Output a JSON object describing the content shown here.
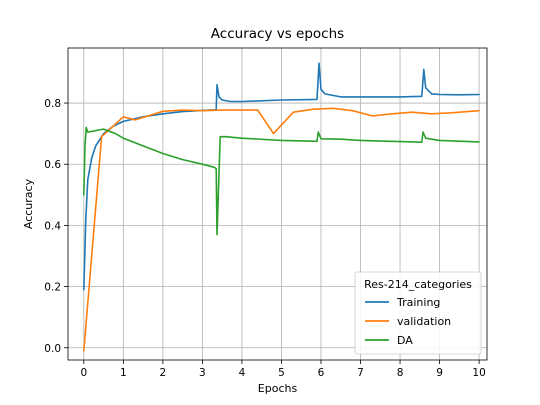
{
  "chart_data": {
    "type": "line",
    "title": "Accuracy vs epochs",
    "xlabel": "Epochs",
    "ylabel": "Accuracy",
    "xlim": [
      -0.4,
      10.2
    ],
    "ylim": [
      -0.04,
      0.98
    ],
    "xticks": [
      0,
      1,
      2,
      3,
      4,
      5,
      6,
      7,
      8,
      9,
      10
    ],
    "yticks": [
      0.0,
      0.2,
      0.4,
      0.6,
      0.8
    ],
    "ytick_labels": [
      "0.0",
      "0.2",
      "0.4",
      "0.6",
      "0.8"
    ],
    "grid": true,
    "legend": {
      "title": "Res-214_categories",
      "placement": "lower-right"
    },
    "series": [
      {
        "name": "Training",
        "color": "#1f77b4",
        "points": [
          [
            0.0,
            0.19
          ],
          [
            0.05,
            0.42
          ],
          [
            0.1,
            0.55
          ],
          [
            0.2,
            0.62
          ],
          [
            0.3,
            0.66
          ],
          [
            0.5,
            0.7
          ],
          [
            0.75,
            0.725
          ],
          [
            1.0,
            0.74
          ],
          [
            1.5,
            0.755
          ],
          [
            2.0,
            0.765
          ],
          [
            2.5,
            0.772
          ],
          [
            3.0,
            0.776
          ],
          [
            3.35,
            0.778
          ],
          [
            3.37,
            0.86
          ],
          [
            3.42,
            0.82
          ],
          [
            3.5,
            0.81
          ],
          [
            3.7,
            0.805
          ],
          [
            4.0,
            0.805
          ],
          [
            5.0,
            0.81
          ],
          [
            5.9,
            0.812
          ],
          [
            5.95,
            0.93
          ],
          [
            6.0,
            0.845
          ],
          [
            6.1,
            0.83
          ],
          [
            6.5,
            0.82
          ],
          [
            7.0,
            0.82
          ],
          [
            8.0,
            0.82
          ],
          [
            8.55,
            0.822
          ],
          [
            8.6,
            0.91
          ],
          [
            8.65,
            0.85
          ],
          [
            8.8,
            0.83
          ],
          [
            9.0,
            0.828
          ],
          [
            9.5,
            0.827
          ],
          [
            10.0,
            0.828
          ]
        ]
      },
      {
        "name": "validation",
        "color": "#ff7f0e",
        "points": [
          [
            0.0,
            -0.01
          ],
          [
            0.45,
            0.69
          ],
          [
            1.0,
            0.755
          ],
          [
            1.3,
            0.745
          ],
          [
            2.0,
            0.773
          ],
          [
            2.5,
            0.777
          ],
          [
            3.0,
            0.775
          ],
          [
            3.5,
            0.777
          ],
          [
            4.4,
            0.777
          ],
          [
            4.8,
            0.7
          ],
          [
            5.3,
            0.77
          ],
          [
            5.8,
            0.78
          ],
          [
            6.3,
            0.783
          ],
          [
            6.8,
            0.775
          ],
          [
            7.3,
            0.758
          ],
          [
            7.8,
            0.765
          ],
          [
            8.3,
            0.77
          ],
          [
            8.8,
            0.765
          ],
          [
            9.3,
            0.768
          ],
          [
            10.0,
            0.775
          ]
        ]
      },
      {
        "name": "DA",
        "color": "#2ca02c",
        "points": [
          [
            0.0,
            0.5
          ],
          [
            0.03,
            0.66
          ],
          [
            0.06,
            0.72
          ],
          [
            0.1,
            0.705
          ],
          [
            0.3,
            0.71
          ],
          [
            0.5,
            0.715
          ],
          [
            0.8,
            0.7
          ],
          [
            1.0,
            0.685
          ],
          [
            1.5,
            0.66
          ],
          [
            2.0,
            0.635
          ],
          [
            2.5,
            0.615
          ],
          [
            3.0,
            0.6
          ],
          [
            3.3,
            0.59
          ],
          [
            3.35,
            0.585
          ],
          [
            3.37,
            0.37
          ],
          [
            3.45,
            0.69
          ],
          [
            3.6,
            0.69
          ],
          [
            4.0,
            0.685
          ],
          [
            5.0,
            0.678
          ],
          [
            5.9,
            0.675
          ],
          [
            5.93,
            0.705
          ],
          [
            6.0,
            0.683
          ],
          [
            6.5,
            0.682
          ],
          [
            7.0,
            0.678
          ],
          [
            8.0,
            0.674
          ],
          [
            8.55,
            0.672
          ],
          [
            8.58,
            0.705
          ],
          [
            8.65,
            0.685
          ],
          [
            9.0,
            0.678
          ],
          [
            10.0,
            0.673
          ]
        ]
      }
    ]
  }
}
